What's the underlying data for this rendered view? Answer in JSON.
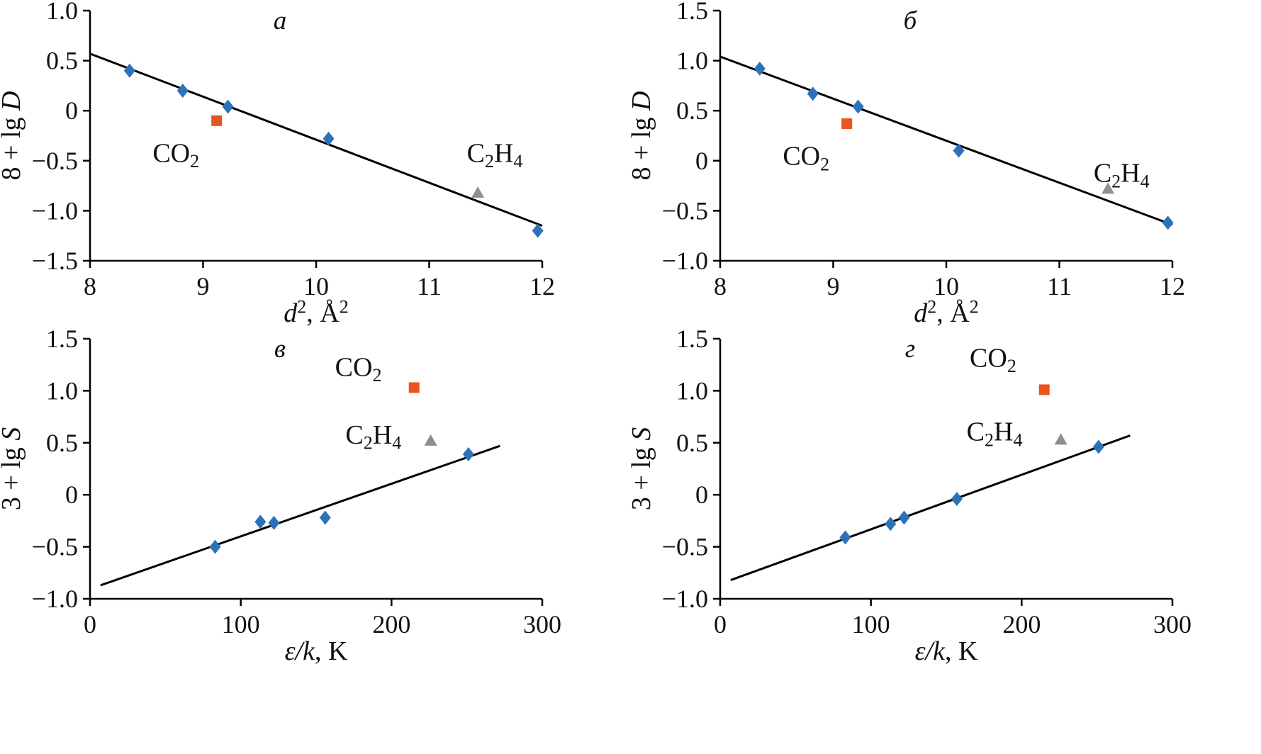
{
  "colors": {
    "noble_gases": "#2d72b8",
    "co2": "#ea5420",
    "c2h4": "#8f8f8f",
    "fit_line": "#000000",
    "axis": "#000000"
  },
  "chart_data": [
    {
      "id": "a",
      "type": "scatter",
      "title": "а",
      "xlim": [
        8,
        12
      ],
      "ylim": [
        -1.5,
        1.0
      ],
      "grid": false,
      "legend": false,
      "xticks": [
        {
          "v": 8,
          "label": "8"
        },
        {
          "v": 9,
          "label": "9"
        },
        {
          "v": 10,
          "label": "10"
        },
        {
          "v": 11,
          "label": "11"
        },
        {
          "v": 12,
          "label": "12"
        }
      ],
      "yticks": [
        {
          "v": 1.0,
          "label": "1.0"
        },
        {
          "v": 0.5,
          "label": "0.5"
        },
        {
          "v": 0,
          "label": "0"
        },
        {
          "v": -0.5,
          "label": "−0.5"
        },
        {
          "v": -1.0,
          "label": "−1.0"
        },
        {
          "v": -1.5,
          "label": "−1.5"
        }
      ],
      "xlabel_segments": [
        {
          "text": "d",
          "italic": true
        },
        {
          "text": "2",
          "sup": true
        },
        {
          "text": ", Å"
        },
        {
          "text": "2",
          "sup": true
        }
      ],
      "ylabel_segments": [
        {
          "text": "8 + lg "
        },
        {
          "text": "D",
          "italic": true
        }
      ],
      "series": [
        {
          "name": "gases",
          "marker": "diamond",
          "color_key": "noble_gases",
          "points": [
            [
              8.35,
              0.4
            ],
            [
              8.82,
              0.2
            ],
            [
              9.22,
              0.04
            ],
            [
              10.11,
              -0.28
            ],
            [
              11.96,
              -1.2
            ]
          ]
        },
        {
          "name": "co2",
          "marker": "square",
          "color_key": "co2",
          "points": [
            [
              9.12,
              -0.1
            ]
          ]
        },
        {
          "name": "c2h4",
          "marker": "triangle",
          "color_key": "c2h4",
          "points": [
            [
              11.43,
              -0.82
            ]
          ]
        }
      ],
      "fit_line": {
        "x": [
          8,
          12
        ],
        "y": [
          0.57,
          -1.15
        ]
      },
      "annotations": [
        {
          "name": "co2",
          "segs": [
            {
              "text": "CO"
            },
            {
              "text": "2",
              "sub": true
            }
          ],
          "x": 8.76,
          "y": -0.42
        },
        {
          "name": "c2h4",
          "segs": [
            {
              "text": "C"
            },
            {
              "text": "2",
              "sub": true
            },
            {
              "text": "H"
            },
            {
              "text": "4",
              "sub": true
            }
          ],
          "x": 11.58,
          "y": -0.42
        }
      ]
    },
    {
      "id": "b",
      "type": "scatter",
      "title": "б",
      "xlim": [
        8,
        12
      ],
      "ylim": [
        -1.0,
        1.5
      ],
      "grid": false,
      "legend": false,
      "xticks": [
        {
          "v": 8,
          "label": "8"
        },
        {
          "v": 9,
          "label": "9"
        },
        {
          "v": 10,
          "label": "10"
        },
        {
          "v": 11,
          "label": "11"
        },
        {
          "v": 12,
          "label": "12"
        }
      ],
      "yticks": [
        {
          "v": 1.5,
          "label": "1.5"
        },
        {
          "v": 1.0,
          "label": "1.0"
        },
        {
          "v": 0.5,
          "label": "0.5"
        },
        {
          "v": 0,
          "label": "0"
        },
        {
          "v": -0.5,
          "label": "−0.5"
        },
        {
          "v": -1.0,
          "label": "−1.0"
        }
      ],
      "xlabel_segments": [
        {
          "text": "d",
          "italic": true
        },
        {
          "text": "2",
          "sup": true
        },
        {
          "text": ", Å"
        },
        {
          "text": "2",
          "sup": true
        }
      ],
      "ylabel_segments": [
        {
          "text": "8 + lg "
        },
        {
          "text": "D",
          "italic": true
        }
      ],
      "series": [
        {
          "name": "gases",
          "marker": "diamond",
          "color_key": "noble_gases",
          "points": [
            [
              8.35,
              0.92
            ],
            [
              8.82,
              0.67
            ],
            [
              9.22,
              0.54
            ],
            [
              10.11,
              0.1
            ],
            [
              11.96,
              -0.62
            ]
          ]
        },
        {
          "name": "co2",
          "marker": "square",
          "color_key": "co2",
          "points": [
            [
              9.12,
              0.37
            ]
          ]
        },
        {
          "name": "c2h4",
          "marker": "triangle",
          "color_key": "c2h4",
          "points": [
            [
              11.43,
              -0.28
            ]
          ]
        }
      ],
      "fit_line": {
        "x": [
          8,
          12
        ],
        "y": [
          1.04,
          -0.64
        ]
      },
      "annotations": [
        {
          "name": "co2",
          "segs": [
            {
              "text": "CO"
            },
            {
              "text": "2",
              "sub": true
            }
          ],
          "x": 8.76,
          "y": 0.05
        },
        {
          "name": "c2h4",
          "segs": [
            {
              "text": "C"
            },
            {
              "text": "2",
              "sub": true
            },
            {
              "text": "H"
            },
            {
              "text": "4",
              "sub": true
            }
          ],
          "x": 11.55,
          "y": -0.12
        }
      ]
    },
    {
      "id": "v",
      "type": "scatter",
      "title": "в",
      "xlim": [
        0,
        300
      ],
      "ylim": [
        -1.0,
        1.5
      ],
      "grid": false,
      "legend": false,
      "xticks": [
        {
          "v": 0,
          "label": "0"
        },
        {
          "v": 100,
          "label": "100"
        },
        {
          "v": 200,
          "label": "200"
        },
        {
          "v": 300,
          "label": "300"
        }
      ],
      "yticks": [
        {
          "v": 1.5,
          "label": "1.5"
        },
        {
          "v": 1.0,
          "label": "1.0"
        },
        {
          "v": 0.5,
          "label": "0.5"
        },
        {
          "v": 0,
          "label": "0"
        },
        {
          "v": -0.5,
          "label": "−0.5"
        },
        {
          "v": -1.0,
          "label": "−1.0"
        }
      ],
      "xlabel_segments": [
        {
          "text": "ε",
          "italic": true
        },
        {
          "text": "/",
          "italic": true
        },
        {
          "text": "k",
          "italic": true
        },
        {
          "text": ", K"
        }
      ],
      "ylabel_segments": [
        {
          "text": "3 + lg "
        },
        {
          "text": "S",
          "italic": true
        }
      ],
      "series": [
        {
          "name": "gases",
          "marker": "diamond",
          "color_key": "noble_gases",
          "points": [
            [
              83,
              -0.5
            ],
            [
              113,
              -0.26
            ],
            [
              122,
              -0.27
            ],
            [
              156,
              -0.22
            ],
            [
              251,
              0.39
            ]
          ]
        },
        {
          "name": "co2",
          "marker": "square",
          "color_key": "co2",
          "points": [
            [
              215,
              1.03
            ]
          ]
        },
        {
          "name": "c2h4",
          "marker": "triangle",
          "color_key": "c2h4",
          "points": [
            [
              226,
              0.52
            ]
          ]
        }
      ],
      "fit_line": {
        "x": [
          7,
          272
        ],
        "y": [
          -0.87,
          0.47
        ]
      },
      "annotations": [
        {
          "name": "co2",
          "segs": [
            {
              "text": "CO"
            },
            {
              "text": "2",
              "sub": true
            }
          ],
          "x": 178,
          "y": 1.23
        },
        {
          "name": "c2h4",
          "segs": [
            {
              "text": "C"
            },
            {
              "text": "2",
              "sub": true
            },
            {
              "text": "H"
            },
            {
              "text": "4",
              "sub": true
            }
          ],
          "x": 188,
          "y": 0.58
        }
      ]
    },
    {
      "id": "g",
      "type": "scatter",
      "title": "г",
      "xlim": [
        0,
        300
      ],
      "ylim": [
        -1.0,
        1.5
      ],
      "grid": false,
      "legend": false,
      "xticks": [
        {
          "v": 0,
          "label": "0"
        },
        {
          "v": 100,
          "label": "100"
        },
        {
          "v": 200,
          "label": "200"
        },
        {
          "v": 300,
          "label": "300"
        }
      ],
      "yticks": [
        {
          "v": 1.5,
          "label": "1.5"
        },
        {
          "v": 1.0,
          "label": "1.0"
        },
        {
          "v": 0.5,
          "label": "0.5"
        },
        {
          "v": 0,
          "label": "0"
        },
        {
          "v": -0.5,
          "label": "−0.5"
        },
        {
          "v": -1.0,
          "label": "−1.0"
        }
      ],
      "xlabel_segments": [
        {
          "text": "ε",
          "italic": true
        },
        {
          "text": "/",
          "italic": true
        },
        {
          "text": "k",
          "italic": true
        },
        {
          "text": ", K"
        }
      ],
      "ylabel_segments": [
        {
          "text": "3 + lg "
        },
        {
          "text": "S",
          "italic": true
        }
      ],
      "series": [
        {
          "name": "gases",
          "marker": "diamond",
          "color_key": "noble_gases",
          "points": [
            [
              83,
              -0.41
            ],
            [
              113,
              -0.28
            ],
            [
              122,
              -0.22
            ],
            [
              157,
              -0.04
            ],
            [
              251,
              0.46
            ]
          ]
        },
        {
          "name": "co2",
          "marker": "square",
          "color_key": "co2",
          "points": [
            [
              215,
              1.01
            ]
          ]
        },
        {
          "name": "c2h4",
          "marker": "triangle",
          "color_key": "c2h4",
          "points": [
            [
              226,
              0.53
            ]
          ]
        }
      ],
      "fit_line": {
        "x": [
          7,
          272
        ],
        "y": [
          -0.82,
          0.57
        ]
      },
      "annotations": [
        {
          "name": "co2",
          "segs": [
            {
              "text": "CO"
            },
            {
              "text": "2",
              "sub": true
            }
          ],
          "x": 181,
          "y": 1.32
        },
        {
          "name": "c2h4",
          "segs": [
            {
              "text": "C"
            },
            {
              "text": "2",
              "sub": true
            },
            {
              "text": "H"
            },
            {
              "text": "4",
              "sub": true
            }
          ],
          "x": 182,
          "y": 0.61
        }
      ]
    }
  ]
}
